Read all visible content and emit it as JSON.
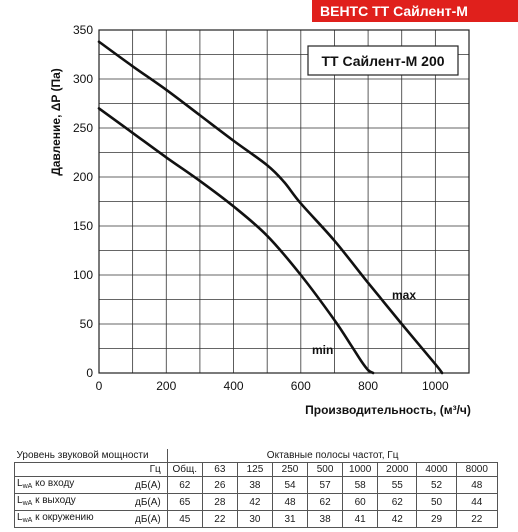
{
  "header": {
    "title": "ВЕНТС ТТ Сайлент-М"
  },
  "chart_data": {
    "type": "line",
    "title": "ТТ Сайлент-М 200",
    "xlabel": "Производительность, (м³/ч)",
    "ylabel": "Давление, ΔP (Па)",
    "xlim": [
      0,
      1100
    ],
    "ylim": [
      0,
      350
    ],
    "x_ticks": [
      0,
      200,
      400,
      600,
      800,
      1000
    ],
    "y_ticks": [
      0,
      50,
      100,
      150,
      200,
      250,
      300,
      350
    ],
    "grid": true,
    "series": [
      {
        "name": "max",
        "x": [
          0,
          100,
          200,
          300,
          400,
          500,
          550,
          600,
          700,
          800,
          900,
          1000,
          1020
        ],
        "y": [
          338,
          313,
          289,
          263,
          237,
          212,
          195,
          173,
          135,
          92,
          50,
          9,
          0
        ]
      },
      {
        "name": "min",
        "x": [
          0,
          100,
          200,
          300,
          400,
          500,
          600,
          700,
          750,
          780,
          800,
          815
        ],
        "y": [
          270,
          245,
          220,
          196,
          170,
          140,
          100,
          54,
          28,
          12,
          3,
          0
        ]
      }
    ]
  },
  "sound_table": {
    "title": "Уровень звуковой мощности",
    "bands_title": "Октавные полосы частот, Гц",
    "unit_hz": "Гц",
    "columns": [
      "Общ.",
      "63",
      "125",
      "250",
      "500",
      "1000",
      "2000",
      "4000",
      "8000"
    ],
    "rows": [
      {
        "label_main": "L",
        "label_sub": "wA",
        "label_rest": " ко входу",
        "unit": "дБ(А)",
        "values": [
          "62",
          "26",
          "38",
          "54",
          "57",
          "58",
          "55",
          "52",
          "48"
        ]
      },
      {
        "label_main": "L",
        "label_sub": "wA",
        "label_rest": " к выходу",
        "unit": "дБ(А)",
        "values": [
          "65",
          "28",
          "42",
          "48",
          "62",
          "60",
          "62",
          "50",
          "44"
        ]
      },
      {
        "label_main": "L",
        "label_sub": "wA",
        "label_rest": " к окружению",
        "unit": "дБ(А)",
        "values": [
          "45",
          "22",
          "30",
          "31",
          "38",
          "41",
          "42",
          "29",
          "22"
        ]
      }
    ]
  }
}
